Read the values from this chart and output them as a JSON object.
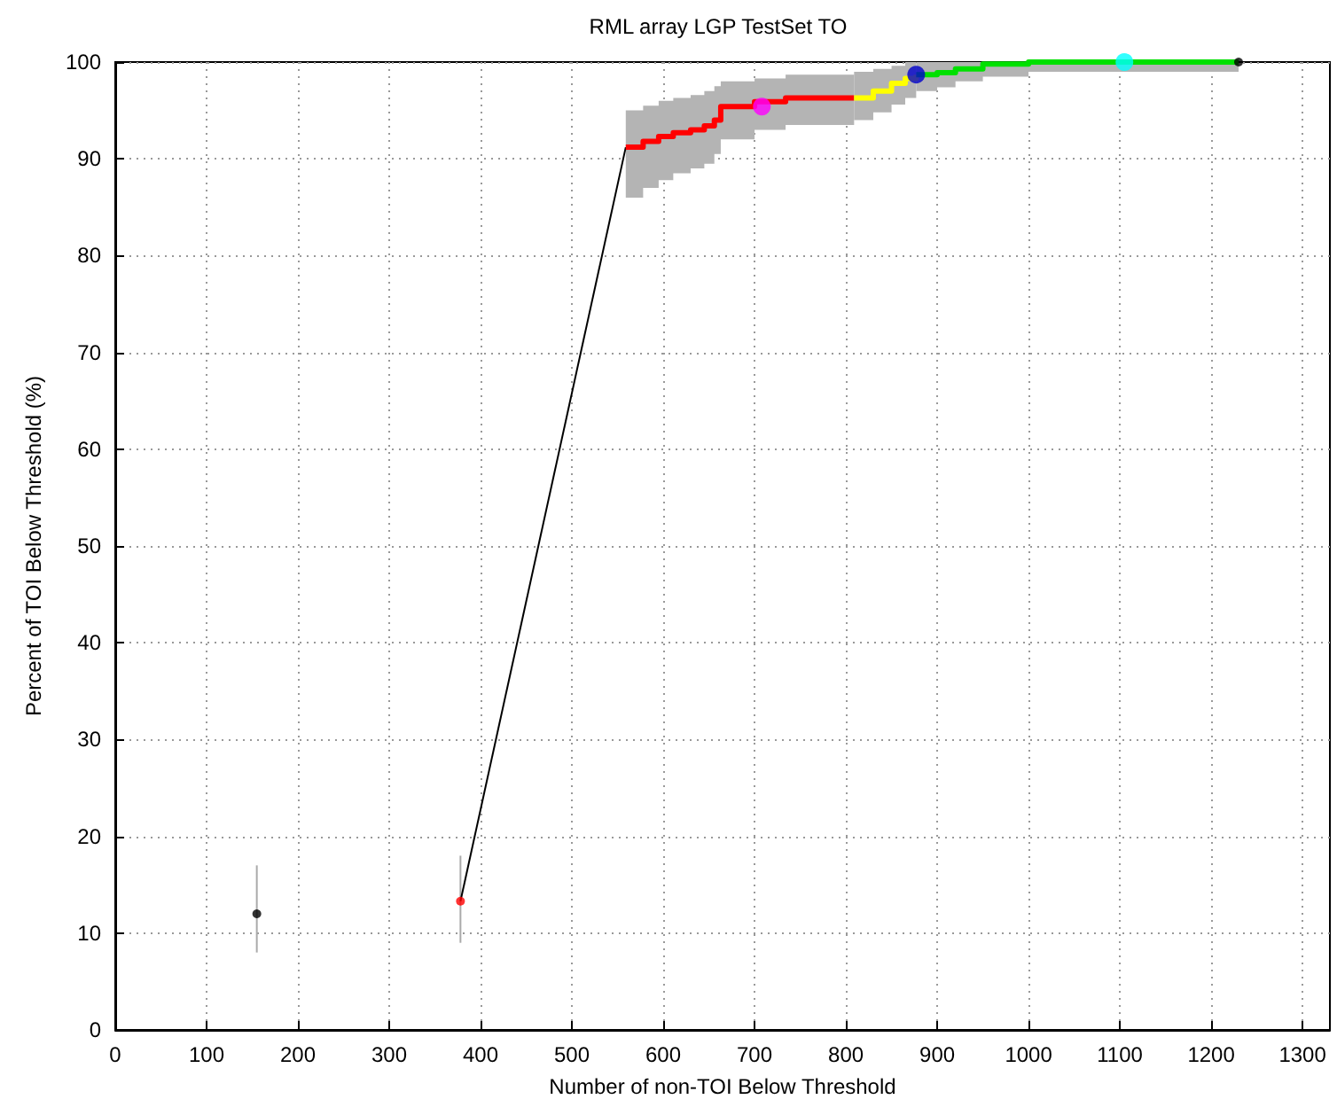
{
  "chart_data": {
    "type": "line",
    "title": "RML array LGP TestSet TO",
    "xlabel": "Number of non-TOI Below Threshold",
    "ylabel": "Percent of TOI Below Threshold (%)",
    "xlim": [
      0,
      1330
    ],
    "xticks": [
      0,
      100,
      200,
      300,
      400,
      500,
      600,
      700,
      800,
      900,
      1000,
      1100,
      1200,
      1300
    ],
    "ylim": [
      0,
      100
    ],
    "yticks": [
      0,
      10,
      20,
      30,
      40,
      50,
      60,
      70,
      80,
      90,
      100
    ],
    "grid": true,
    "series": [
      {
        "type": "scatter",
        "color": "#000000",
        "x": [
          155
        ],
        "values": [
          12
        ],
        "errors": [
          [
            8,
            17
          ]
        ],
        "marker": "circle"
      },
      {
        "color": "#000000",
        "x": [
          378,
          559
        ],
        "values": [
          13.3,
          91.2
        ],
        "marker": "none"
      },
      {
        "type": "scatter",
        "color": "#ff0000",
        "x": [
          378
        ],
        "values": [
          13.3
        ],
        "errors": [
          [
            9,
            18
          ]
        ],
        "marker": "circle"
      },
      {
        "type": "step",
        "color": "#ff0000",
        "x": [
          559,
          578,
          595,
          611,
          630,
          645,
          656,
          663,
          700,
          734,
          809
        ],
        "values": [
          91.2,
          91.8,
          92.3,
          92.7,
          93.0,
          93.4,
          94.0,
          95.4,
          95.9,
          96.3,
          96.3
        ],
        "lower": [
          86,
          87,
          87.8,
          88.5,
          89,
          89.5,
          90.5,
          92,
          93,
          93.5,
          94
        ],
        "upper": [
          95,
          95.5,
          96,
          96.3,
          96.6,
          97,
          97.5,
          98,
          98.3,
          98.7,
          99
        ],
        "marker": "none"
      },
      {
        "type": "step",
        "color": "#ffff00",
        "x": [
          809,
          830,
          850,
          865,
          877
        ],
        "values": [
          96.3,
          97,
          97.8,
          98.3,
          98.7
        ],
        "lower": [
          94,
          94.8,
          95.6,
          96.3,
          97
        ],
        "upper": [
          99,
          99.3,
          99.6,
          100,
          100
        ],
        "marker": "none"
      },
      {
        "type": "step",
        "color": "#00e000",
        "x": [
          877,
          900,
          920,
          950,
          1000,
          1230
        ],
        "values": [
          98.7,
          98.9,
          99.3,
          99.8,
          100,
          100
        ],
        "lower": [
          97,
          97.4,
          98,
          98.5,
          99,
          99
        ],
        "upper": [
          100,
          100,
          100,
          100,
          100,
          100
        ],
        "marker": "none"
      },
      {
        "type": "scatter",
        "color": "#ff00ff",
        "x": [
          708
        ],
        "values": [
          95.4
        ],
        "marker": "circle"
      },
      {
        "type": "scatter",
        "color": "#0000cc",
        "x": [
          877
        ],
        "values": [
          98.7
        ],
        "marker": "circle"
      },
      {
        "type": "scatter",
        "color": "#00ffff",
        "x": [
          1105
        ],
        "values": [
          100
        ],
        "marker": "circle"
      },
      {
        "type": "scatter",
        "color": "#000000",
        "x": [
          1230
        ],
        "values": [
          100
        ],
        "marker": "circle"
      }
    ]
  }
}
